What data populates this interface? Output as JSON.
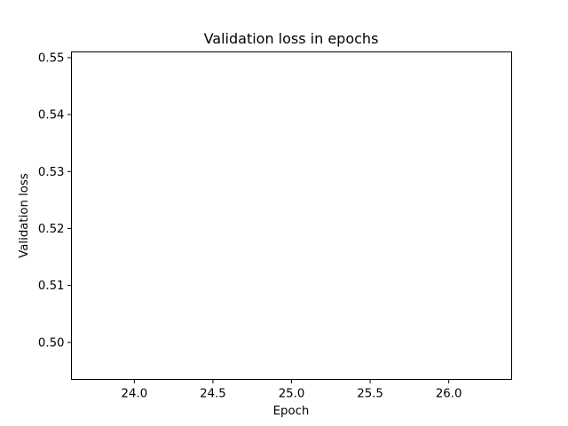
{
  "chart_data": {
    "type": "line",
    "title": "Validation loss in epochs",
    "xlabel": "Epoch",
    "ylabel": "Validation loss",
    "xlim": [
      23.6,
      26.4
    ],
    "ylim": [
      0.4935,
      0.551
    ],
    "xticks": [
      24.0,
      24.5,
      25.0,
      25.5,
      26.0
    ],
    "xtick_labels": [
      "24.0",
      "24.5",
      "25.0",
      "25.5",
      "26.0"
    ],
    "yticks": [
      0.5,
      0.51,
      0.52,
      0.53,
      0.54,
      0.55
    ],
    "ytick_labels": [
      "0.50",
      "0.51",
      "0.52",
      "0.53",
      "0.54",
      "0.55"
    ],
    "series": [],
    "grid": false,
    "legend": "none"
  }
}
